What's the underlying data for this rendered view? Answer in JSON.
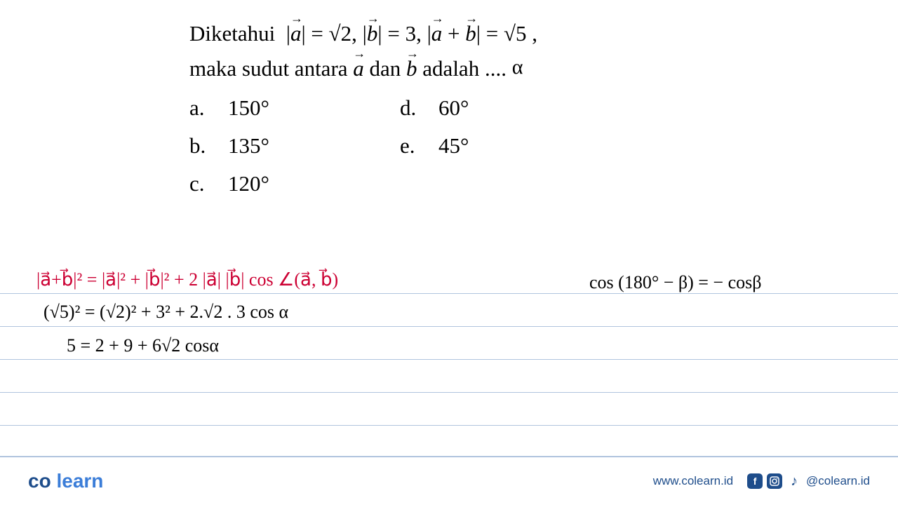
{
  "question": {
    "line1_html": "Diketahui &nbsp;|<span class='vec'><i>a</i></span>| = √2, |<span class='vec'><i>b</i></span>| = 3, |<span class='vec'><i>a</i></span> + <span class='vec'><i>b</i></span>| = √5 ,",
    "line2_prefix_html": "maka sudut antara <span class='vec'><i>a</i></span> dan <span class='vec'><i>b</i></span> adalah ....",
    "alpha_annotation": "α"
  },
  "options": {
    "a": {
      "letter": "a.",
      "value": "150°"
    },
    "b": {
      "letter": "b.",
      "value": "135°"
    },
    "c": {
      "letter": "c.",
      "value": "120°"
    },
    "d": {
      "letter": "d.",
      "value": "60°"
    },
    "e": {
      "letter": "e.",
      "value": "45°"
    }
  },
  "notebook_lines": [
    48,
    95,
    142,
    189,
    236
  ],
  "handwritten": {
    "formula_red": "|a⃗+b⃗|² = |a⃗|² + |b⃗|² + 2 |a⃗| |b⃗| cos ∠(a⃗, b⃗)",
    "line2": "(√5)² = (√2)² + 3² + 2.√2 . 3  cos α",
    "line3": "5   =   2 + 9 + 6√2 cosα",
    "cos_identity": "cos (180° − β) = − cosβ"
  },
  "footer": {
    "logo_co": "co",
    "logo_learn": " learn",
    "website": "www.colearn.id",
    "handle": "@colearn.id",
    "icons": {
      "facebook": "f",
      "instagram": "◯",
      "tiktok": "♪"
    }
  },
  "colors": {
    "red": "#cc0033",
    "black": "#000000",
    "line_blue": "#b0c4de",
    "brand_dark": "#1e4d8b",
    "brand_light": "#3b7dd8"
  }
}
